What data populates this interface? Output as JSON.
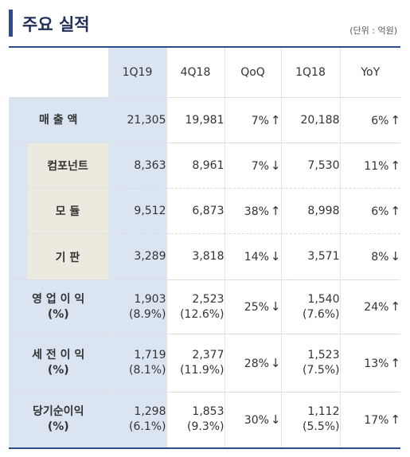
{
  "title": "주요 실적",
  "unit": "(단위 : 억원)",
  "columns": [
    "1Q19",
    "4Q18",
    "QoQ",
    "1Q18",
    "YoY"
  ],
  "rows": [
    {
      "label": "매 출 액",
      "v1q19": "21,305",
      "v4q18": "19,981",
      "qoq": "7%",
      "qoq_dir": "↑",
      "v1q18": "20,188",
      "yoy": "6%",
      "yoy_dir": "↑"
    },
    {
      "label": "컴포넌트",
      "v1q19": "8,363",
      "v4q18": "8,961",
      "qoq": "7%",
      "qoq_dir": "↓",
      "v1q18": "7,530",
      "yoy": "11%",
      "yoy_dir": "↑"
    },
    {
      "label": "모 듈",
      "v1q19": "9,512",
      "v4q18": "6,873",
      "qoq": "38%",
      "qoq_dir": "↑",
      "v1q18": "8,998",
      "yoy": "6%",
      "yoy_dir": "↑"
    },
    {
      "label": "기 판",
      "v1q19": "3,289",
      "v4q18": "3,818",
      "qoq": "14%",
      "qoq_dir": "↓",
      "v1q18": "3,571",
      "yoy": "8%",
      "yoy_dir": "↓"
    },
    {
      "label": "영 업 이 익",
      "label2": "(%)",
      "v1q19": "1,903",
      "v1q19_pct": "(8.9%)",
      "v4q18": "2,523",
      "v4q18_pct": "(12.6%)",
      "qoq": "25%",
      "qoq_dir": "↓",
      "v1q18": "1,540",
      "v1q18_pct": "(7.6%)",
      "yoy": "24%",
      "yoy_dir": "↑"
    },
    {
      "label": "세 전 이 익",
      "label2": "(%)",
      "v1q19": "1,719",
      "v1q19_pct": "(8.1%)",
      "v4q18": "2,377",
      "v4q18_pct": "(11.9%)",
      "qoq": "28%",
      "qoq_dir": "↓",
      "v1q18": "1,523",
      "v1q18_pct": "(7.5%)",
      "yoy": "13%",
      "yoy_dir": "↑"
    },
    {
      "label": "당기순이익",
      "label2": "(%)",
      "v1q19": "1,298",
      "v1q19_pct": "(6.1%)",
      "v4q18": "1,853",
      "v4q18_pct": "(9.3%)",
      "qoq": "30%",
      "qoq_dir": "↓",
      "v1q18": "1,112",
      "v1q18_pct": "(5.5%)",
      "yoy": "17%",
      "yoy_dir": "↑"
    }
  ],
  "colors": {
    "accent": "#2e4b8c",
    "title": "#1f2f57",
    "header_blue": "#dbe5f1",
    "sub_beige": "#ece9de"
  }
}
